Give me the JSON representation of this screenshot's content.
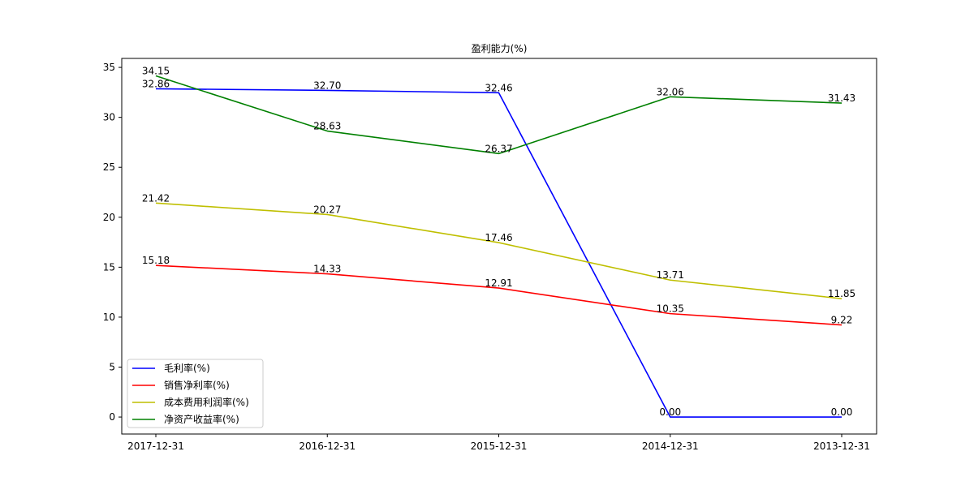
{
  "chart_data": {
    "type": "line",
    "title": "盈利能力(%)",
    "xlabel": "",
    "ylabel": "",
    "categories": [
      "2017-12-31",
      "2016-12-31",
      "2015-12-31",
      "2014-12-31",
      "2013-12-31"
    ],
    "ylim": [
      -1.7,
      35.9
    ],
    "yticks": [
      0,
      5,
      10,
      15,
      20,
      25,
      30,
      35
    ],
    "grid": false,
    "legend_position": "lower-left",
    "series": [
      {
        "name": "毛利率(%)",
        "color": "#0000ff",
        "values": [
          32.86,
          32.7,
          32.46,
          0.0,
          0.0
        ],
        "labels": [
          "32.86",
          "32.70",
          "32.46",
          "0.00",
          "0.00"
        ]
      },
      {
        "name": "销售净利率(%)",
        "color": "#ff0000",
        "values": [
          15.18,
          14.33,
          12.91,
          10.35,
          9.22
        ],
        "labels": [
          "15.18",
          "14.33",
          "12.91",
          "10.35",
          "9.22"
        ]
      },
      {
        "name": "成本费用利润率(%)",
        "color": "#bfbf00",
        "values": [
          21.42,
          20.27,
          17.46,
          13.71,
          11.85
        ],
        "labels": [
          "21.42",
          "20.27",
          "17.46",
          "13.71",
          "11.85"
        ]
      },
      {
        "name": "净资产收益率(%)",
        "color": "#008000",
        "values": [
          34.15,
          28.63,
          26.37,
          32.06,
          31.43
        ],
        "labels": [
          "34.15",
          "28.63",
          "26.37",
          "32.06",
          "31.43"
        ]
      }
    ]
  }
}
